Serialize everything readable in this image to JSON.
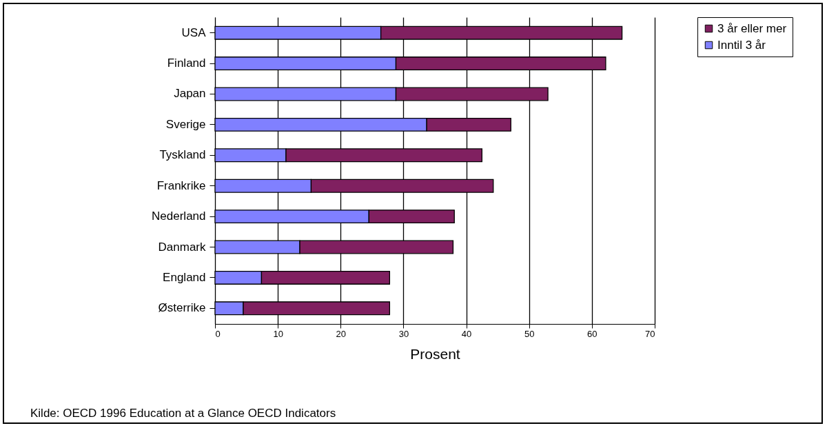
{
  "chart_data": {
    "type": "bar",
    "orientation": "horizontal",
    "stacked": true,
    "categories": [
      "USA",
      "Finland",
      "Japan",
      "Sverige",
      "Tyskland",
      "Frankrike",
      "Nederland",
      "Danmark",
      "England",
      "Østerrike"
    ],
    "series": [
      {
        "name": "Inntil 3 år",
        "color": "#8080ff",
        "values": [
          26.4,
          28.8,
          28.8,
          33.7,
          11.3,
          15.3,
          24.5,
          13.5,
          7.4,
          4.5
        ]
      },
      {
        "name": "3 år eller mer",
        "color": "#802060",
        "values": [
          38.4,
          33.4,
          24.2,
          13.4,
          31.2,
          29.0,
          13.6,
          24.4,
          20.4,
          23.3
        ]
      }
    ],
    "xlabel": "Prosent",
    "xlim": [
      0,
      70
    ],
    "xticks": [
      0,
      10,
      20,
      30,
      40,
      50,
      60,
      70
    ],
    "grid": "x",
    "legend": "right",
    "annotations": [
      "Kilde: OECD 1996 Education at a Glance OECD Indicators"
    ]
  }
}
